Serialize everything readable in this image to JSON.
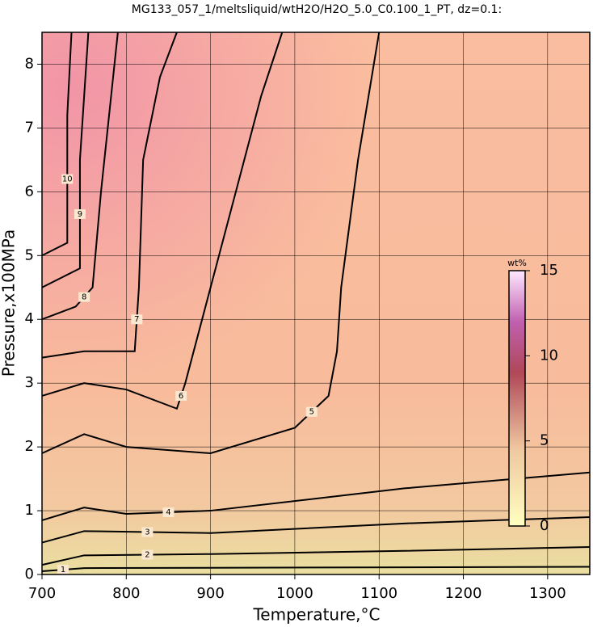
{
  "chart_data": {
    "type": "contour",
    "title": "MG133_057_1/meltsliquid/wtH2O/H2O_5.0_C0.100_1_PT, dz=0.1:",
    "xlabel": "Temperature,°C",
    "ylabel": "Pressure,x100MPa",
    "xlim": [
      700,
      1350
    ],
    "ylim": [
      0,
      8.5
    ],
    "xticks": [
      700,
      800,
      900,
      1000,
      1100,
      1200,
      1300
    ],
    "yticks": [
      0,
      1,
      2,
      3,
      4,
      5,
      6,
      7,
      8
    ],
    "grid": true,
    "colorbar": {
      "label": "wt%",
      "lim": [
        0,
        15
      ],
      "ticks": [
        0,
        5,
        10,
        15
      ]
    },
    "series": [
      {
        "name": "1",
        "color": "#000000",
        "x": [
          700,
          750,
          1350
        ],
        "y": [
          0.05,
          0.1,
          0.12
        ]
      },
      {
        "name": "2",
        "color": "#000000",
        "x": [
          700,
          750,
          900,
          1130,
          1350
        ],
        "y": [
          0.15,
          0.3,
          0.32,
          0.37,
          0.43
        ]
      },
      {
        "name": "3",
        "color": "#000000",
        "x": [
          700,
          750,
          900,
          1130,
          1350
        ],
        "y": [
          0.5,
          0.68,
          0.65,
          0.8,
          0.9
        ]
      },
      {
        "name": "4",
        "color": "#000000",
        "x": [
          700,
          750,
          800,
          900,
          1130,
          1350
        ],
        "y": [
          0.85,
          1.05,
          0.95,
          1.0,
          1.35,
          1.6
        ]
      },
      {
        "name": "5",
        "color": "#000000",
        "x": [
          700,
          750,
          800,
          900,
          1000,
          1040,
          1050,
          1055,
          1075,
          1100
        ],
        "y": [
          1.9,
          2.2,
          2.0,
          1.9,
          2.3,
          2.8,
          3.5,
          4.5,
          6.5,
          8.5
        ]
      },
      {
        "name": "6",
        "color": "#000000",
        "x": [
          700,
          750,
          800,
          860,
          870,
          900,
          960,
          985
        ],
        "y": [
          2.8,
          3.0,
          2.9,
          2.6,
          3.0,
          4.5,
          7.5,
          8.5
        ]
      },
      {
        "name": "7",
        "color": "#000000",
        "x": [
          700,
          750,
          810,
          815,
          820,
          840,
          860
        ],
        "y": [
          3.4,
          3.5,
          3.5,
          4.5,
          6.5,
          7.8,
          8.5
        ]
      },
      {
        "name": "8",
        "color": "#000000",
        "x": [
          700,
          740,
          760,
          770,
          790
        ],
        "y": [
          4.0,
          4.2,
          4.5,
          6.0,
          8.5
        ]
      },
      {
        "name": "9",
        "color": "#000000",
        "x": [
          700,
          745,
          745,
          755
        ],
        "y": [
          4.5,
          4.8,
          6.5,
          8.5
        ]
      },
      {
        "name": "10",
        "color": "#000000",
        "x": [
          700,
          730,
          730,
          735
        ],
        "y": [
          5.0,
          5.2,
          7.2,
          8.5
        ]
      }
    ]
  }
}
